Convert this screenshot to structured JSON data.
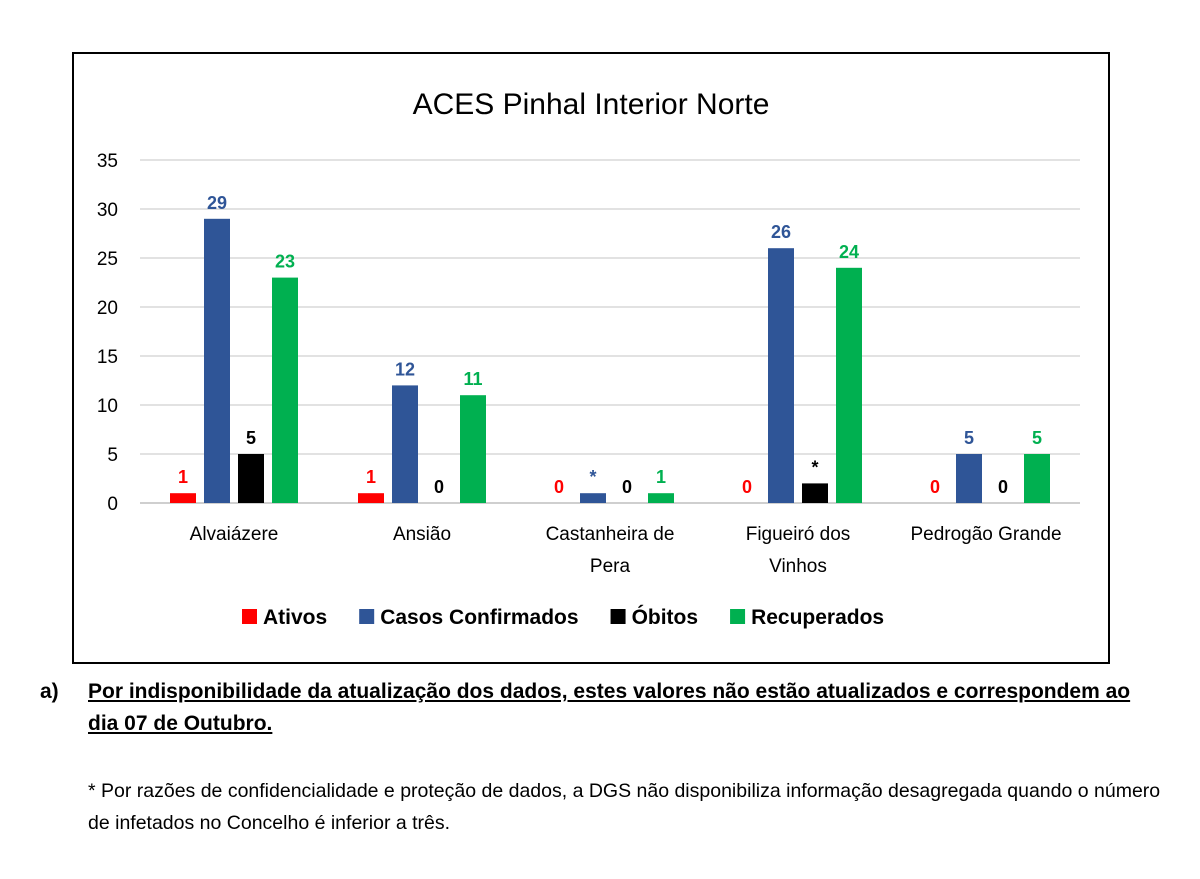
{
  "chart_data": {
    "type": "bar",
    "title": "ACES Pinhal Interior Norte",
    "categories": [
      [
        "Alvaiázere"
      ],
      [
        "Ansião"
      ],
      [
        "Castanheira de",
        "Pera"
      ],
      [
        "Figueiró dos",
        "Vinhos"
      ],
      [
        "Pedrogão Grande"
      ]
    ],
    "series": [
      {
        "name": "Ativos",
        "color": "#FF0000",
        "values": [
          1,
          1,
          0,
          0,
          0
        ],
        "labels": [
          "1",
          "1",
          "0",
          "0",
          "0"
        ]
      },
      {
        "name": "Casos Confirmados",
        "color": "#2F5597",
        "values": [
          29,
          12,
          1,
          26,
          5
        ],
        "labels": [
          "29",
          "12",
          "*",
          "26",
          "5"
        ]
      },
      {
        "name": "Óbitos",
        "color": "#000000",
        "values": [
          5,
          0,
          0,
          2,
          0
        ],
        "labels": [
          "5",
          "0",
          "0",
          "*",
          "0"
        ]
      },
      {
        "name": "Recuperados",
        "color": "#00B050",
        "values": [
          23,
          11,
          1,
          24,
          5
        ],
        "labels": [
          "23",
          "11",
          "1",
          "24",
          "5"
        ]
      }
    ],
    "ylim": [
      0,
      35
    ],
    "yticks": [
      0,
      5,
      10,
      15,
      20,
      25,
      30,
      35
    ],
    "grid": true,
    "legend": "bottom"
  },
  "notes": {
    "a_marker": "a)",
    "a_text": "Por indisponibilidade da atualização dos dados, estes valores não estão atualizados e correspondem ao dia 07 de Outubro.",
    "star_text": "* Por razões de confidencialidade e proteção de dados, a DGS não disponibiliza informação desagregada quando o número de infetados no Concelho é inferior a três."
  }
}
